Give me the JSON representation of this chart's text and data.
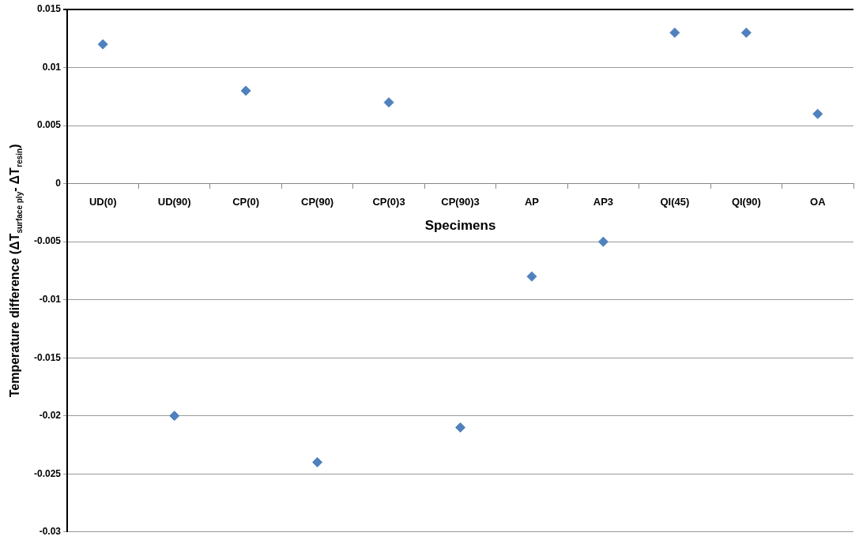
{
  "chart_data": {
    "type": "scatter",
    "xlabel": "Specimens",
    "ylabel": "Temperature difference (ΔT$_{surface ply}$- ΔT$_{resin}$)",
    "categories": [
      "UD(0)",
      "UD(90)",
      "CP(0)",
      "CP(90)",
      "CP(0)3",
      "CP(90)3",
      "AP",
      "AP3",
      "QI(45)",
      "QI(90)",
      "OA"
    ],
    "values": [
      0.012,
      -0.02,
      0.008,
      -0.024,
      0.007,
      -0.021,
      -0.008,
      -0.005,
      0.013,
      0.013,
      0.006
    ],
    "color": "#4f81bd",
    "marker": "diamond",
    "grid": "y",
    "legend": false,
    "ylim": [
      -0.03,
      0.015
    ],
    "yticks": [
      -0.03,
      -0.025,
      -0.02,
      -0.015,
      -0.01,
      -0.005,
      0,
      0.005,
      0.01,
      0.015
    ]
  }
}
